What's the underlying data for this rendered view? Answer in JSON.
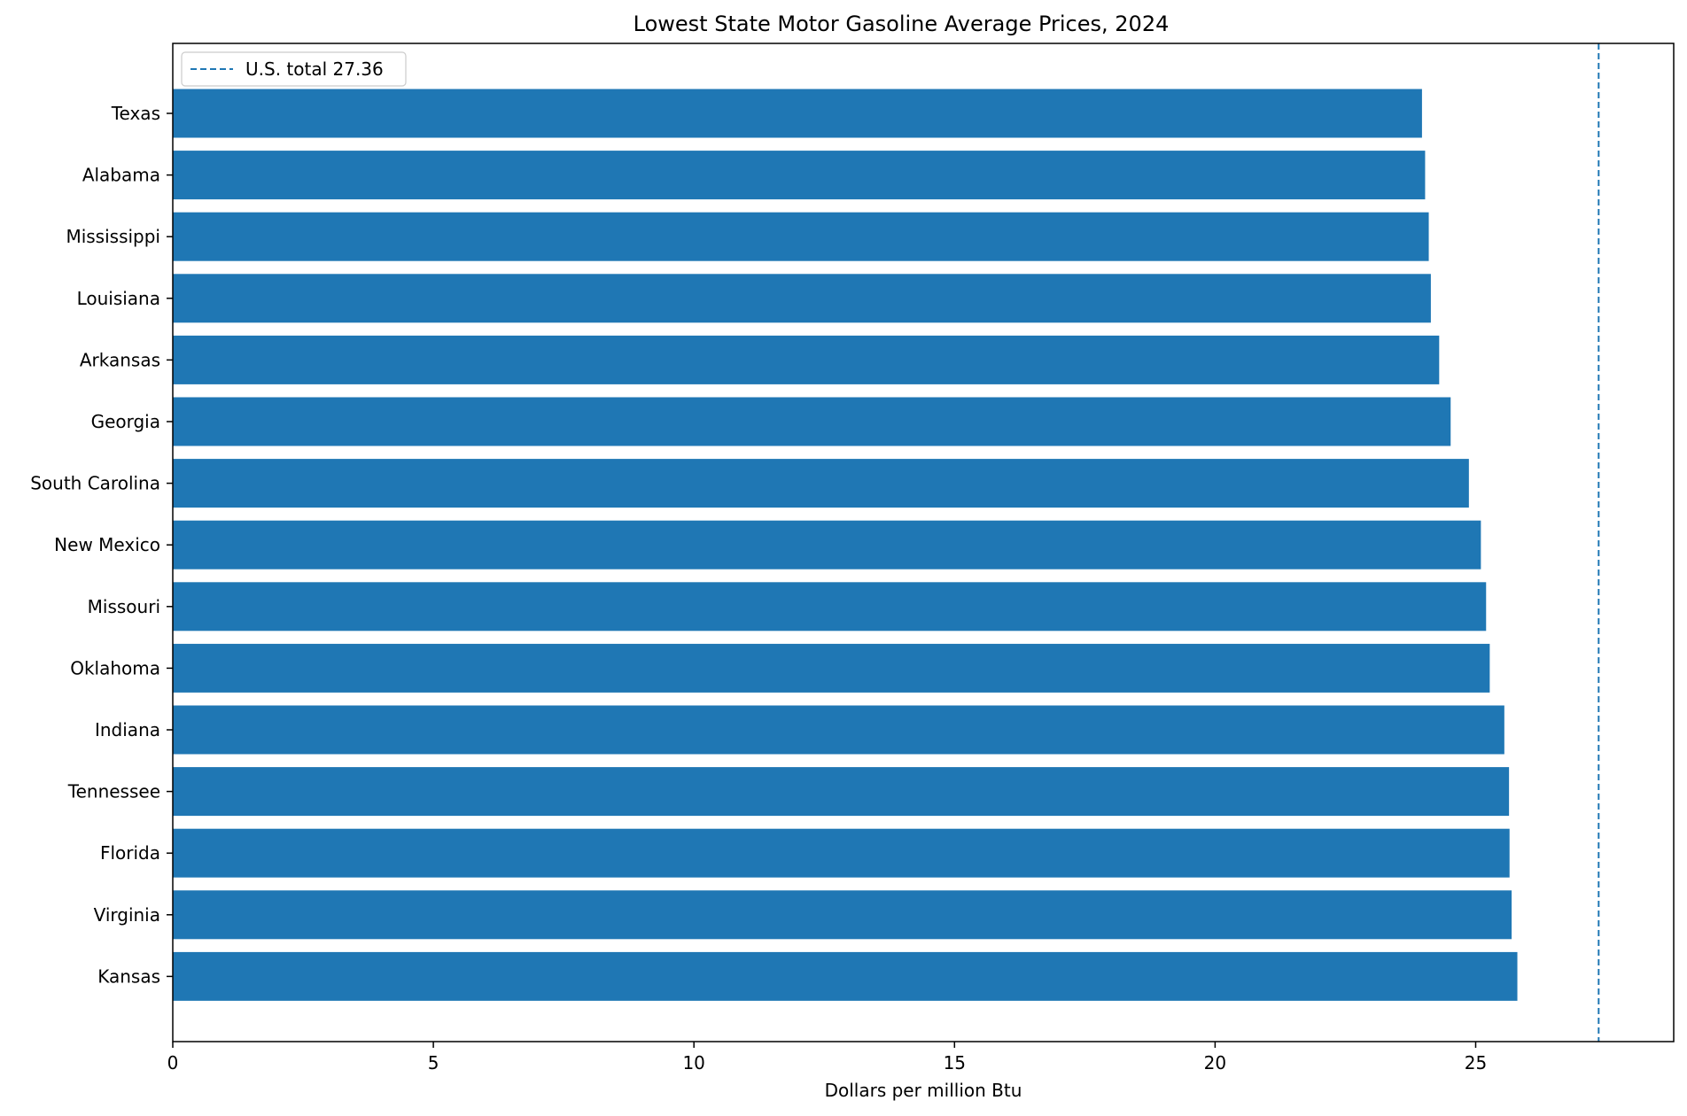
{
  "chart_data": {
    "type": "bar",
    "orientation": "horizontal",
    "title": "Lowest State Motor Gasoline Average Prices, 2024",
    "xlabel": "Dollars per million Btu",
    "ylabel": "",
    "xlim": [
      0,
      28.8
    ],
    "xticks": [
      0,
      5,
      10,
      15,
      20,
      25
    ],
    "categories": [
      "Texas",
      "Alabama",
      "Mississippi",
      "Louisiana",
      "Arkansas",
      "Georgia",
      "South Carolina",
      "New Mexico",
      "Missouri",
      "Oklahoma",
      "Indiana",
      "Tennessee",
      "Florida",
      "Virginia",
      "Kansas"
    ],
    "values": [
      23.97,
      24.03,
      24.1,
      24.14,
      24.3,
      24.52,
      24.87,
      25.1,
      25.2,
      25.27,
      25.55,
      25.64,
      25.65,
      25.69,
      25.8
    ],
    "bar_color": "#1f77b4",
    "reference_line": {
      "value": 27.36,
      "label": "U.S. total 27.36",
      "style": "dashed",
      "color": "#1f77b4"
    },
    "legend": {
      "position": "upper-left"
    },
    "grid": false
  }
}
